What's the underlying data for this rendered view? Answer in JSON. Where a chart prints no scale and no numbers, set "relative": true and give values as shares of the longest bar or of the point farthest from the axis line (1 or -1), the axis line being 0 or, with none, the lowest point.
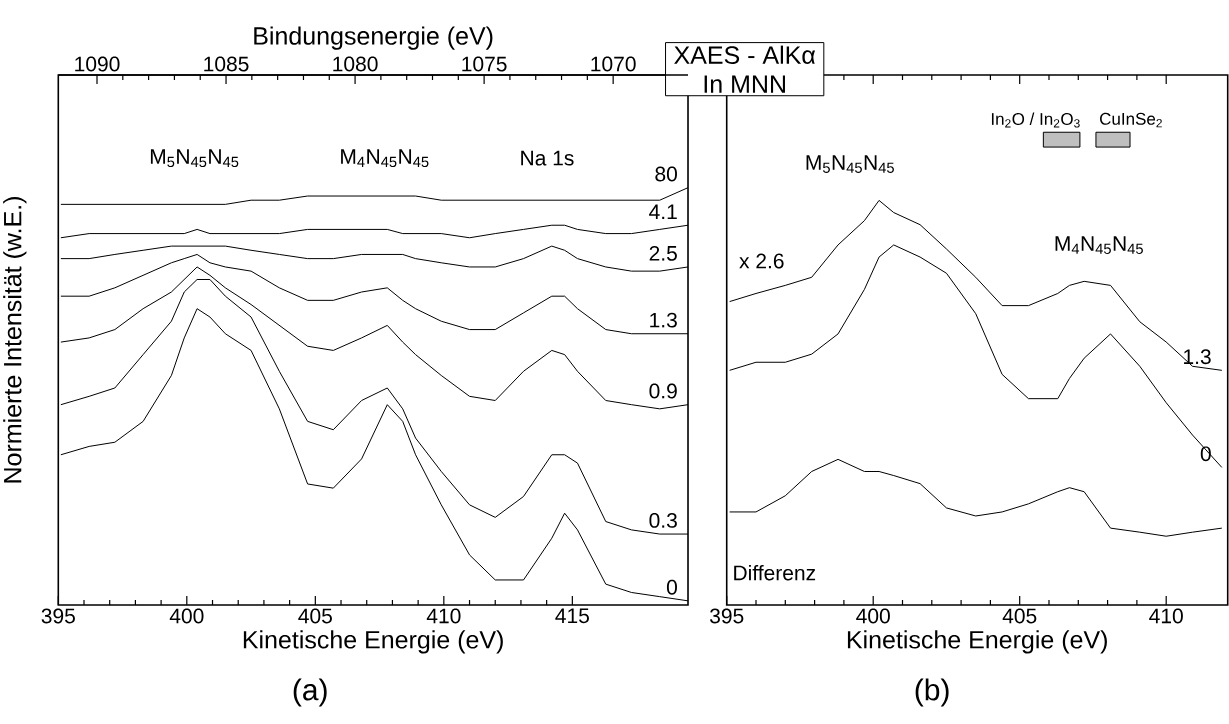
{
  "chart_data": [
    {
      "type": "line",
      "relative": true,
      "xlabel": "Kinetische Energie (eV)",
      "ylabel": "Normierte Intensität (w.E.)",
      "x2label": "Bindungsenergie (eV)",
      "xlim": [
        395,
        419.5
      ],
      "xticks": [
        395,
        400,
        405,
        410,
        415
      ],
      "x2lim": [
        1091.5,
        1067.1
      ],
      "x2ticks": [
        1090,
        1085,
        1080,
        1075,
        1070
      ],
      "x": [
        395.1,
        396.2,
        397.2,
        398.3,
        399.4,
        399.9,
        400.4,
        400.9,
        401.5,
        402.5,
        403.6,
        404.7,
        405.7,
        406.8,
        407.8,
        408.4,
        408.9,
        409.9,
        411.0,
        412.0,
        413.1,
        414.2,
        414.7,
        415.2,
        416.3,
        417.3,
        418.4,
        419.5
      ],
      "series": [
        {
          "name": "0",
          "color": "#000000",
          "values": [
            0.36,
            0.38,
            0.39,
            0.44,
            0.55,
            0.64,
            0.71,
            0.69,
            0.65,
            0.61,
            0.47,
            0.29,
            0.28,
            0.35,
            0.48,
            0.44,
            0.36,
            0.24,
            0.12,
            0.06,
            0.06,
            0.16,
            0.22,
            0.18,
            0.05,
            0.03,
            0.02,
            0.01
          ]
        },
        {
          "name": "0.3",
          "color": "#000000",
          "values": [
            0.48,
            0.5,
            0.52,
            0.6,
            0.68,
            0.75,
            0.78,
            0.78,
            0.74,
            0.69,
            0.56,
            0.44,
            0.42,
            0.49,
            0.52,
            0.47,
            0.4,
            0.32,
            0.24,
            0.21,
            0.26,
            0.36,
            0.36,
            0.34,
            0.2,
            0.18,
            0.17,
            0.17
          ]
        },
        {
          "name": "0.9",
          "color": "#000000",
          "values": [
            0.63,
            0.64,
            0.66,
            0.71,
            0.75,
            0.78,
            0.81,
            0.79,
            0.76,
            0.72,
            0.67,
            0.62,
            0.61,
            0.64,
            0.67,
            0.63,
            0.6,
            0.55,
            0.5,
            0.49,
            0.56,
            0.61,
            0.6,
            0.56,
            0.49,
            0.48,
            0.47,
            0.48
          ]
        },
        {
          "name": "1.3",
          "color": "#000000",
          "values": [
            0.74,
            0.74,
            0.76,
            0.79,
            0.82,
            0.83,
            0.84,
            0.82,
            0.81,
            0.8,
            0.76,
            0.73,
            0.73,
            0.75,
            0.76,
            0.73,
            0.71,
            0.68,
            0.66,
            0.66,
            0.7,
            0.74,
            0.74,
            0.71,
            0.66,
            0.65,
            0.65,
            0.65
          ]
        },
        {
          "name": "2.5",
          "color": "#000000",
          "values": [
            0.83,
            0.83,
            0.84,
            0.85,
            0.86,
            0.86,
            0.86,
            0.86,
            0.86,
            0.85,
            0.84,
            0.83,
            0.83,
            0.84,
            0.84,
            0.84,
            0.83,
            0.82,
            0.81,
            0.81,
            0.83,
            0.86,
            0.85,
            0.83,
            0.81,
            0.8,
            0.8,
            0.81
          ]
        },
        {
          "name": "4.1",
          "color": "#000000",
          "values": [
            0.88,
            0.89,
            0.89,
            0.89,
            0.89,
            0.89,
            0.9,
            0.89,
            0.89,
            0.89,
            0.89,
            0.9,
            0.9,
            0.9,
            0.9,
            0.89,
            0.89,
            0.89,
            0.88,
            0.89,
            0.9,
            0.91,
            0.91,
            0.9,
            0.89,
            0.89,
            0.9,
            0.91
          ]
        },
        {
          "name": "80",
          "color": "#000000",
          "values": [
            0.96,
            0.96,
            0.96,
            0.96,
            0.96,
            0.96,
            0.96,
            0.96,
            0.96,
            0.97,
            0.97,
            0.98,
            0.98,
            0.98,
            0.98,
            0.98,
            0.98,
            0.97,
            0.97,
            0.97,
            0.97,
            0.97,
            0.97,
            0.97,
            0.97,
            0.97,
            0.97,
            1.0
          ]
        }
      ],
      "annotations": [
        "M$_{5}$N$_{45}$N$_{45}$",
        "M$_{4}$N$_{45}$N$_{45}$",
        "Na 1s",
        "XAES - AlKα",
        "In MNN",
        "(a)"
      ]
    },
    {
      "type": "line",
      "relative": true,
      "xlabel": "Kinetische Energie (eV)",
      "xlim": [
        395,
        412.1
      ],
      "xticks": [
        395,
        400,
        405,
        410
      ],
      "x": [
        395.1,
        396.0,
        397.0,
        397.9,
        398.8,
        399.7,
        400.2,
        400.7,
        401.6,
        402.5,
        403.5,
        404.4,
        405.3,
        406.3,
        406.7,
        407.2,
        408.1,
        409.1,
        410.0,
        410.9,
        411.9
      ],
      "series": [
        {
          "name": "1.3",
          "color": "#000000",
          "values": [
            0.75,
            0.77,
            0.79,
            0.81,
            0.89,
            0.95,
            1.0,
            0.97,
            0.94,
            0.88,
            0.81,
            0.74,
            0.74,
            0.77,
            0.79,
            0.8,
            0.79,
            0.7,
            0.65,
            0.59,
            0.58
          ]
        },
        {
          "name": "0",
          "color": "#000000",
          "values": [
            0.58,
            0.6,
            0.6,
            0.62,
            0.67,
            0.78,
            0.86,
            0.89,
            0.86,
            0.82,
            0.72,
            0.57,
            0.51,
            0.51,
            0.56,
            0.61,
            0.67,
            0.59,
            0.5,
            0.42,
            0.34
          ]
        },
        {
          "color": "#000000",
          "values": [
            0.23,
            0.23,
            0.27,
            0.33,
            0.36,
            0.33,
            0.33,
            0.32,
            0.3,
            0.24,
            0.22,
            0.23,
            0.25,
            0.28,
            0.29,
            0.28,
            0.19,
            0.18,
            0.17,
            0.18,
            0.19
          ]
        }
      ],
      "annotations": [
        "In$_{2}$O / In$_{2}$O$_{3}$",
        "CuInSe$_{2}$",
        "M$_{5}$N$_{45}$N$_{45}$",
        "M$_{4}$N$_{45}$N$_{45}$",
        "x 2.6",
        "Differenz",
        "(b)"
      ]
    }
  ]
}
